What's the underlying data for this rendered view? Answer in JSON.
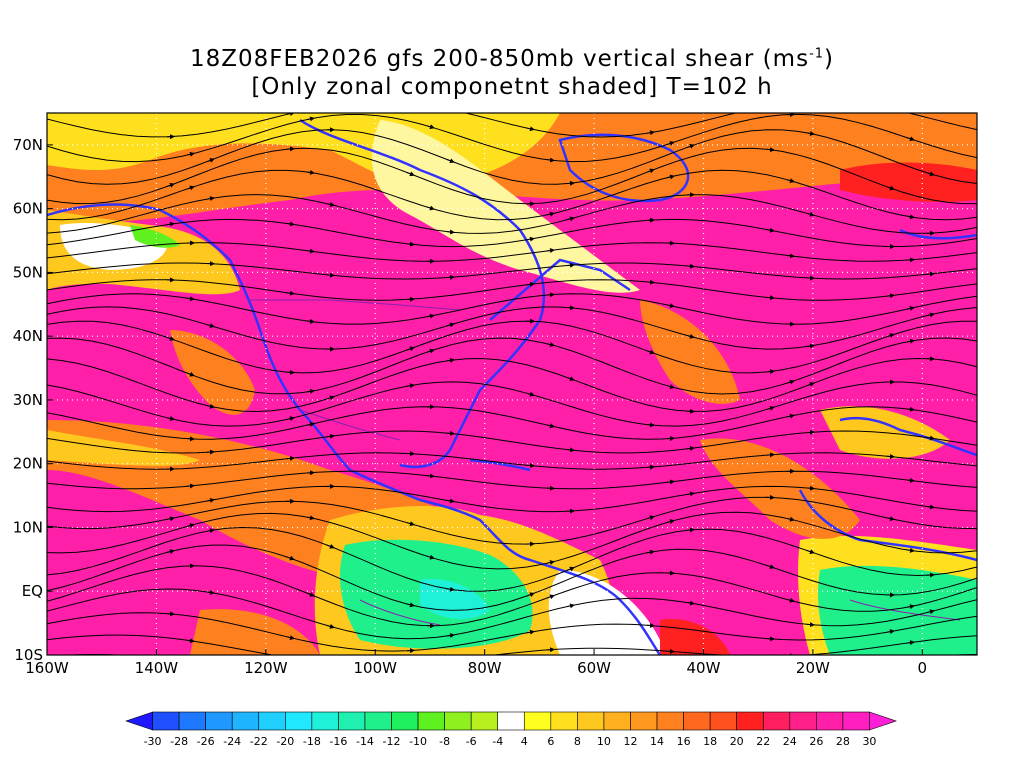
{
  "title_line1": "18Z08FEB2026 gfs 200-850mb vertical shear (ms",
  "title_unit_sup": "-1",
  "title_line1_end": ")",
  "title_line2": "[Only zonal componetnt shaded] T=102 h",
  "lat_labels": [
    "70N",
    "60N",
    "50N",
    "40N",
    "30N",
    "20N",
    "10N",
    "EQ",
    "10S"
  ],
  "lat_values": [
    70,
    60,
    50,
    40,
    30,
    20,
    10,
    0,
    -10
  ],
  "lon_labels": [
    "160W",
    "140W",
    "120W",
    "100W",
    "80W",
    "60W",
    "40W",
    "20W",
    "0"
  ],
  "lon_values": [
    -160,
    -140,
    -120,
    -100,
    -80,
    -60,
    -40,
    -20,
    0
  ],
  "map_extent": {
    "lon_min": -160,
    "lon_max": 10,
    "lat_min": -10,
    "lat_max": 75
  },
  "colorbar": {
    "labels": [
      "-30",
      "-28",
      "-26",
      "-24",
      "-22",
      "-20",
      "-18",
      "-16",
      "-14",
      "-12",
      "-10",
      "-8",
      "-6",
      "-4",
      "4",
      "6",
      "8",
      "10",
      "12",
      "14",
      "16",
      "18",
      "20",
      "22",
      "24",
      "26",
      "28",
      "30"
    ],
    "colors": [
      "#1f18ff",
      "#1f50ff",
      "#1f79ff",
      "#1f98ff",
      "#1fb4ff",
      "#1fd0ff",
      "#1fe8ff",
      "#1ff0d8",
      "#1ff0b0",
      "#1ff08c",
      "#1ff060",
      "#5ff01f",
      "#8ff01f",
      "#b8f01f",
      "#ffffff",
      "#ffff1f",
      "#ffe01f",
      "#ffc81f",
      "#ffb01f",
      "#ff981f",
      "#ff801f",
      "#ff681f",
      "#ff501f",
      "#ff2020",
      "#ff1f60",
      "#ff1f88",
      "#ff1fa8",
      "#ff1fc0",
      "#ff1fd8"
    ]
  },
  "colors": {
    "coastline": "#3333ff",
    "borders": "#8a20b0",
    "streamlines": "#000000",
    "grid": "#ffffff"
  }
}
